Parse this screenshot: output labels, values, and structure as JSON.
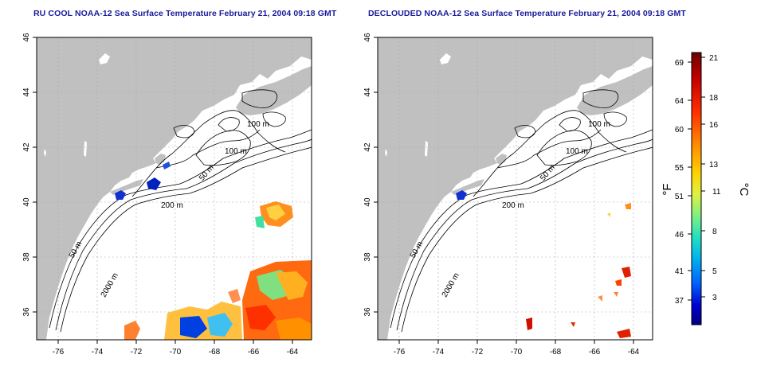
{
  "left_panel": {
    "title": "RU COOL NOAA-12 Sea Surface Temperature February 21, 2004 09:18 GMT"
  },
  "right_panel": {
    "title": "DECLOUDED NOAA-12 Sea Surface Temperature February 21, 2004 09:18 GMT"
  },
  "map": {
    "lon_ticks": [
      "-76",
      "-74",
      "-72",
      "-70",
      "-68",
      "-66",
      "-64"
    ],
    "lat_ticks": [
      "36",
      "38",
      "40",
      "42",
      "44",
      "46"
    ],
    "contour_labels": [
      "100 m",
      "100 m",
      "50 m",
      "200 m",
      "50 m",
      "2000 m"
    ],
    "land_color": "#c0c0c0",
    "ocean_color": "#ffffff"
  },
  "colorbar": {
    "f_ticks": [
      "69",
      "64",
      "60",
      "55",
      "51",
      "46",
      "41",
      "37"
    ],
    "c_ticks": [
      "21",
      "18",
      "16",
      "13",
      "11",
      "8",
      "5",
      "3"
    ],
    "f_unit": "°F",
    "c_unit": "°C",
    "colors": [
      "#6a0000",
      "#c80000",
      "#ff3000",
      "#ff8c00",
      "#ffd000",
      "#e0f040",
      "#80f080",
      "#20e0c0",
      "#00b0f0",
      "#0060ff",
      "#0000d0",
      "#000080"
    ]
  }
}
